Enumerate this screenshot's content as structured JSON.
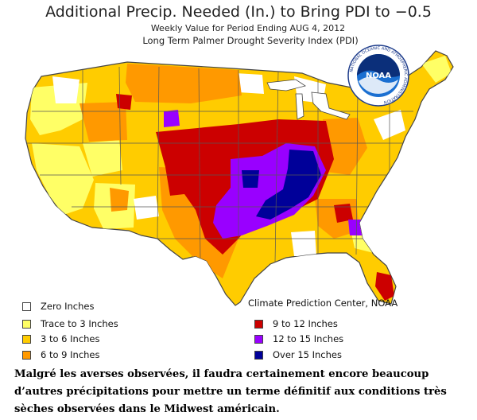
{
  "header": {
    "title": "Additional Precip. Needed (In.) to Bring PDI to −0.5",
    "subtitle_1": "Weekly Value for Period Ending AUG  4, 2012",
    "subtitle_2": "Long Term Palmer Drought Severity Index (PDI)"
  },
  "logo": {
    "text": "NOAA",
    "ring_text": "NATIONAL OCEANIC AND ATMOSPHERIC ADMINISTRATION"
  },
  "credit": "Climate Prediction Center, NOAA",
  "colors": {
    "zero": "#ffffff",
    "trace_3": "#ffff66",
    "in_3_6": "#ffcc00",
    "in_6_9": "#ff9900",
    "in_9_12": "#cc0000",
    "in_12_15": "#9900ff",
    "over_15": "#000099",
    "border": "#444444"
  },
  "legend": [
    {
      "label": "Zero Inches",
      "color": "#ffffff"
    },
    {
      "label": "Trace to 3 Inches",
      "color": "#ffff66"
    },
    {
      "label": "3 to 6 Inches",
      "color": "#ffcc00"
    },
    {
      "label": "6 to 9 Inches",
      "color": "#ff9900"
    },
    {
      "label": "9 to 12 Inches",
      "color": "#cc0000"
    },
    {
      "label": "12 to 15 Inches",
      "color": "#9900ff"
    },
    {
      "label": "Over 15 Inches",
      "color": "#000099"
    }
  ],
  "caption": "Malgré les averses observées, il faudra certainement encore beaucoup d’autres précipitations pour mettre un terme définitif aux conditions très sèches observées dans le Midwest américain."
}
